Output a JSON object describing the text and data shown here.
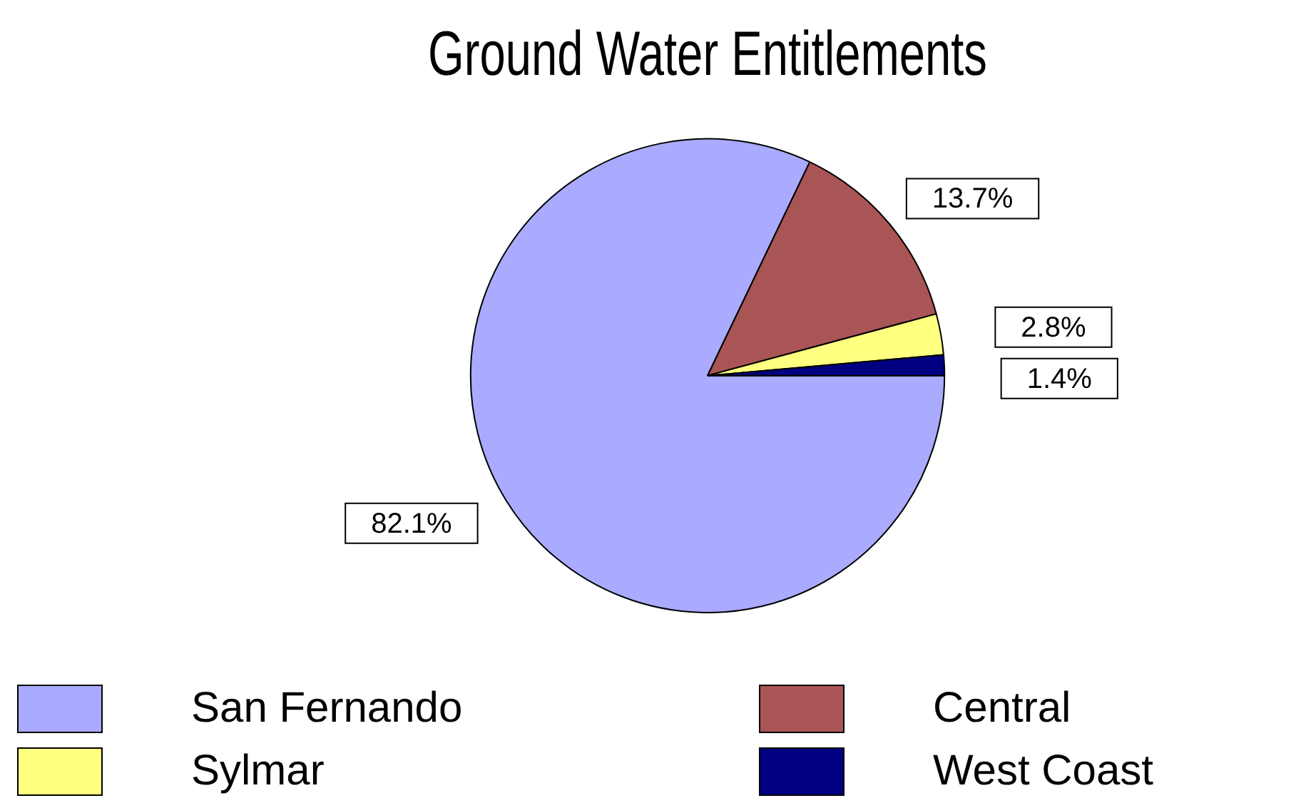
{
  "chart_data": {
    "type": "pie",
    "title": "Ground Water Entitlements",
    "categories": [
      "San Fernando",
      "Central",
      "Sylmar",
      "West Coast"
    ],
    "values": [
      82.1,
      13.7,
      2.8,
      1.4
    ],
    "colors": [
      "#aaaaff",
      "#aa5555",
      "#ffff80",
      "#000080"
    ],
    "value_labels": [
      "82.1%",
      "13.7%",
      "2.8%",
      "1.4%"
    ],
    "legend": "bottom"
  }
}
